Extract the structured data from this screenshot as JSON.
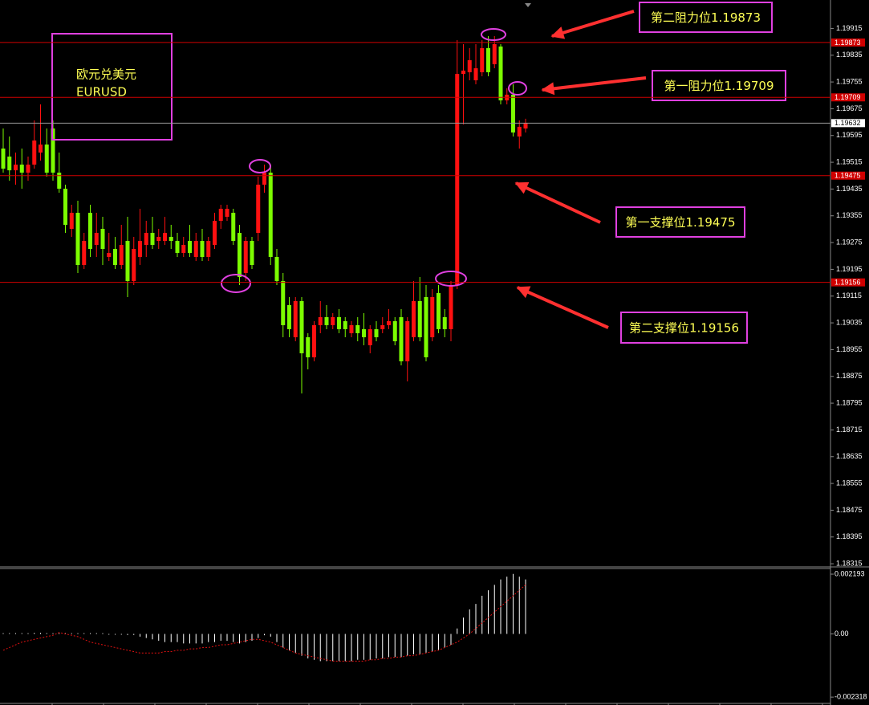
{
  "chart_data": [
    {
      "type": "candlestick",
      "title": "欧元兑美元",
      "subtitle": "EURUSD",
      "annotations": [
        "第二阻力位1.19873",
        "第一阻力位1.19709",
        "第一支撑位1.19475",
        "第二支撑位1.19156"
      ],
      "up_color": "#ff1010",
      "down_color": "#7cfc00",
      "level_color": "#d00000",
      "levels": [
        1.19873,
        1.19709,
        1.19475,
        1.19156
      ],
      "current_price": 1.19632,
      "ylim": [
        1.18308,
        1.2
      ],
      "yticks": [
        1.19915,
        1.19835,
        1.19755,
        1.19675,
        1.19595,
        1.19515,
        1.19435,
        1.19355,
        1.19275,
        1.19195,
        1.19115,
        1.19035,
        1.18955,
        1.18875,
        1.18795,
        1.18715,
        1.18635,
        1.18555,
        1.18475,
        1.18395,
        1.18315
      ],
      "open": [
        1.19556,
        1.19532,
        1.19491,
        1.19508,
        1.19484,
        1.19508,
        1.19544,
        1.19568,
        1.19616,
        1.19484,
        1.19436,
        1.19316,
        1.19364,
        1.19208,
        1.19364,
        1.19268,
        1.19316,
        1.19232,
        1.19256,
        1.19208,
        1.1928,
        1.1916,
        1.19232,
        1.19268,
        1.19304,
        1.1928,
        1.1928,
        1.19292,
        1.1928,
        1.19244,
        1.1928,
        1.19232,
        1.1928,
        1.19232,
        1.19268,
        1.1934,
        1.19352,
        1.19364,
        1.19304,
        1.19184,
        1.1928,
        1.19304,
        1.19448,
        1.19484,
        1.19232,
        1.1916,
        1.19088,
        1.18992,
        1.191,
        1.18992,
        1.18932,
        1.19028,
        1.19052,
        1.19028,
        1.19052,
        1.1904,
        1.19004,
        1.19028,
        1.19016,
        1.18968,
        1.19016,
        1.19016,
        1.19028,
        1.1904,
        1.19052,
        1.1892,
        1.18992,
        1.191,
        1.19112,
        1.18992,
        1.19124,
        1.19052,
        1.19016,
        1.19148,
        1.19779,
        1.19784,
        1.1976,
        1.19784,
        1.19856,
        1.19808,
        1.19861,
        1.197,
        1.19717,
        1.19592,
        1.19616
      ],
      "high": [
        1.19616,
        1.19592,
        1.19544,
        1.19556,
        1.19532,
        1.1964,
        1.19688,
        1.19616,
        1.1964,
        1.19544,
        1.19448,
        1.19388,
        1.194,
        1.19304,
        1.19388,
        1.19364,
        1.19352,
        1.19304,
        1.19292,
        1.19328,
        1.19352,
        1.19292,
        1.19376,
        1.1934,
        1.19352,
        1.19316,
        1.19352,
        1.19328,
        1.19304,
        1.19292,
        1.19328,
        1.19304,
        1.19316,
        1.19292,
        1.19364,
        1.19388,
        1.19388,
        1.19376,
        1.19328,
        1.19292,
        1.19292,
        1.19472,
        1.19508,
        1.19508,
        1.19256,
        1.19184,
        1.19112,
        1.19112,
        1.19112,
        1.19004,
        1.1904,
        1.191,
        1.19088,
        1.19064,
        1.19076,
        1.19052,
        1.1904,
        1.19052,
        1.19064,
        1.19028,
        1.1904,
        1.19052,
        1.19076,
        1.19052,
        1.19076,
        1.19052,
        1.1916,
        1.19172,
        1.19148,
        1.19136,
        1.19148,
        1.19076,
        1.1916,
        1.1988,
        1.19868,
        1.19856,
        1.19868,
        1.1988,
        1.19892,
        1.19892,
        1.19868,
        1.19736,
        1.19748,
        1.1964,
        1.19645
      ],
      "low": [
        1.19484,
        1.1946,
        1.19448,
        1.19436,
        1.1946,
        1.19496,
        1.1952,
        1.19472,
        1.1946,
        1.19424,
        1.19304,
        1.19292,
        1.19184,
        1.19196,
        1.19232,
        1.19232,
        1.19208,
        1.1922,
        1.19196,
        1.19196,
        1.19112,
        1.19148,
        1.19208,
        1.19232,
        1.19256,
        1.19256,
        1.19268,
        1.19256,
        1.19232,
        1.19232,
        1.19232,
        1.1922,
        1.1922,
        1.1922,
        1.19256,
        1.19316,
        1.1934,
        1.19268,
        1.19148,
        1.1916,
        1.19196,
        1.1928,
        1.19424,
        1.19208,
        1.19148,
        1.18992,
        1.18992,
        1.1898,
        1.18824,
        1.18896,
        1.1892,
        1.19004,
        1.19016,
        1.19016,
        1.19004,
        1.18992,
        1.18992,
        1.1898,
        1.18968,
        1.18944,
        1.1898,
        1.19004,
        1.19016,
        1.18968,
        1.18908,
        1.1886,
        1.1898,
        1.1898,
        1.1892,
        1.1898,
        1.19004,
        1.18992,
        1.1898,
        1.19136,
        1.19628,
        1.1976,
        1.19748,
        1.19772,
        1.19772,
        1.19796,
        1.19688,
        1.19688,
        1.19592,
        1.19556,
        1.19604
      ],
      "close": [
        1.19496,
        1.19491,
        1.19508,
        1.19484,
        1.19508,
        1.1958,
        1.19568,
        1.19484,
        1.19484,
        1.19436,
        1.19328,
        1.19364,
        1.19208,
        1.1928,
        1.19256,
        1.19304,
        1.19256,
        1.19244,
        1.19208,
        1.19268,
        1.1916,
        1.19256,
        1.1928,
        1.19304,
        1.19268,
        1.19292,
        1.19304,
        1.1928,
        1.19244,
        1.19268,
        1.19244,
        1.1928,
        1.19232,
        1.1928,
        1.1934,
        1.19376,
        1.19376,
        1.1928,
        1.19172,
        1.1928,
        1.19208,
        1.19448,
        1.19484,
        1.19232,
        1.1916,
        1.19028,
        1.19016,
        1.191,
        1.18944,
        1.18932,
        1.19028,
        1.19052,
        1.19028,
        1.19052,
        1.19016,
        1.19016,
        1.19028,
        1.19004,
        1.18992,
        1.19016,
        1.18992,
        1.19028,
        1.1904,
        1.1898,
        1.1892,
        1.1904,
        1.191,
        1.18992,
        1.18932,
        1.19112,
        1.19016,
        1.19016,
        1.19148,
        1.19779,
        1.19789,
        1.1982,
        1.19796,
        1.19856,
        1.19784,
        1.19868,
        1.197,
        1.19717,
        1.19604,
        1.19621,
        1.19632
      ]
    },
    {
      "type": "macd",
      "histogram_color": "#ffffff",
      "signal_color": "#e01010",
      "ylim": [
        -0.00252,
        0.0024
      ],
      "yticks": [
        0.002193,
        {
          "value": 0,
          "label": "0.00"
        },
        -0.002318
      ],
      "histogram": [
        2e-05,
        2e-05,
        3e-05,
        3e-05,
        3e-05,
        4e-05,
        4e-05,
        3e-05,
        3e-05,
        2e-05,
        1e-05,
        0,
        -1e-05,
        -1e-05,
        -2e-05,
        -2e-05,
        -2e-05,
        -3e-05,
        -3e-05,
        -3e-05,
        -4e-05,
        -4e-05,
        -0.0001,
        -0.00015,
        -0.0002,
        -0.00025,
        -0.0003,
        -0.0003,
        -0.0003,
        -0.00035,
        -0.00035,
        -0.00035,
        -0.00035,
        -0.0003,
        -0.0003,
        -0.00025,
        -0.00025,
        -0.0003,
        -0.00035,
        -0.0003,
        -0.00025,
        -0.00015,
        -5e-05,
        -0.0001,
        -0.0003,
        -0.0005,
        -0.0006,
        -0.0007,
        -0.0008,
        -0.0009,
        -0.00095,
        -0.001,
        -0.001,
        -0.001,
        -0.001,
        -0.001,
        -0.001,
        -0.00095,
        -0.00095,
        -0.00095,
        -0.0009,
        -0.0009,
        -0.00085,
        -0.00085,
        -0.00085,
        -0.0008,
        -0.00075,
        -0.00075,
        -0.0007,
        -0.00065,
        -0.0006,
        -0.0005,
        -0.0004,
        0.0002,
        0.0006,
        0.0009,
        0.0011,
        0.0014,
        0.0016,
        0.0018,
        0.002,
        0.0021,
        0.0022,
        0.0021,
        0.002
      ],
      "signal": [
        -0.0006,
        -0.0005,
        -0.0004,
        -0.0003,
        -0.00025,
        -0.0002,
        -0.00015,
        -0.0001,
        -5e-05,
        5e-05,
        0,
        -5e-05,
        -0.0001,
        -0.0002,
        -0.0003,
        -0.00035,
        -0.0004,
        -0.00045,
        -0.0005,
        -0.00055,
        -0.0006,
        -0.00065,
        -0.0007,
        -0.0007,
        -0.0007,
        -0.0007,
        -0.00065,
        -0.00065,
        -0.0006,
        -0.0006,
        -0.00055,
        -0.00055,
        -0.0005,
        -0.0005,
        -0.00045,
        -0.0004,
        -0.0004,
        -0.00035,
        -0.0003,
        -0.00025,
        -0.0002,
        -0.0002,
        -0.00025,
        -0.0003,
        -0.0004,
        -0.0005,
        -0.0006,
        -0.0007,
        -0.00075,
        -0.0008,
        -0.00085,
        -0.0009,
        -0.00095,
        -0.001,
        -0.001,
        -0.001,
        -0.001,
        -0.001,
        -0.001,
        -0.00095,
        -0.00095,
        -0.0009,
        -0.0009,
        -0.00085,
        -0.00085,
        -0.0008,
        -0.0008,
        -0.00075,
        -0.0007,
        -0.00065,
        -0.0006,
        -0.0005,
        -0.0004,
        -0.0003,
        -0.00015,
        0,
        0.0002,
        0.0004,
        0.0006,
        0.0008,
        0.001,
        0.0012,
        0.0014,
        0.0016,
        0.0018
      ]
    }
  ]
}
